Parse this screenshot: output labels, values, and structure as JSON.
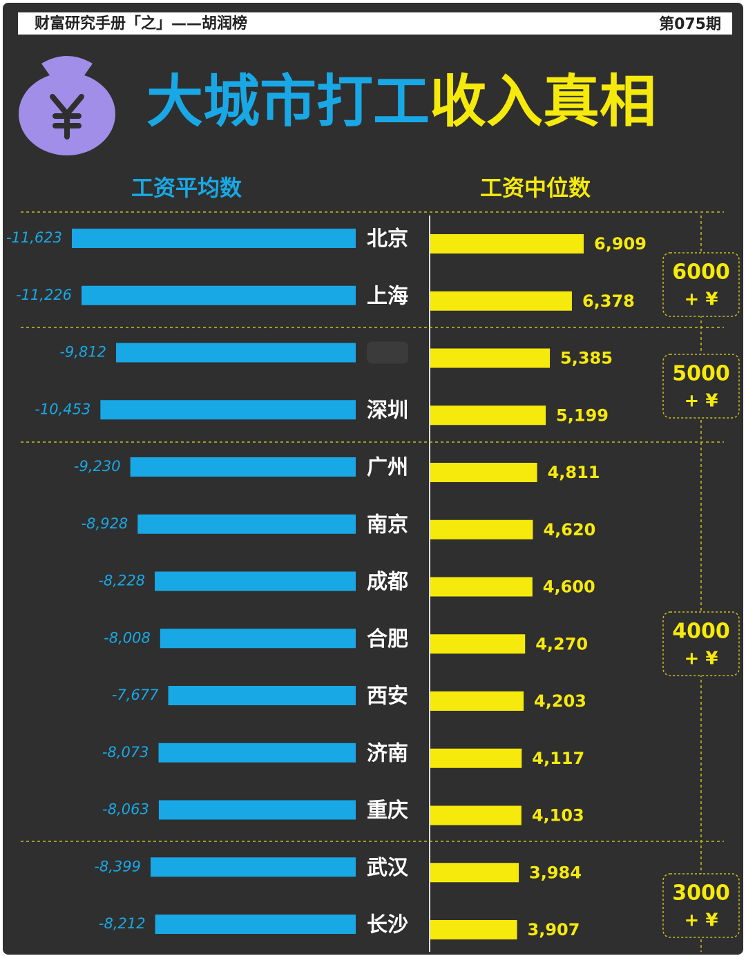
{
  "header": {
    "title": "财富研究手册「之」——胡润榜",
    "issue": "第075期"
  },
  "chart_data": {
    "type": "butterfly-bar",
    "title_parts": [
      {
        "text": "大城市打工",
        "color": "#19a8e6"
      },
      {
        "text": "收入真相",
        "color": "#f6ea0c"
      }
    ],
    "categories": [
      "北京",
      "上海",
      null,
      "深圳",
      "广州",
      "南京",
      "成都",
      "合肥",
      "西安",
      "济南",
      "重庆",
      "武汉",
      "长沙"
    ],
    "series": [
      {
        "name": "工资平均数",
        "color": "#19a8e6",
        "values": [
          -11623,
          -11226,
          -9812,
          -10453,
          -9230,
          -8928,
          -8228,
          -8008,
          -7677,
          -8073,
          -8063,
          -8399,
          -8212
        ],
        "value_labels": [
          "-11,623",
          "-11,226",
          "-9,812",
          "-10,453",
          "-9,230",
          "-8,928",
          "-8,228",
          "-8,008",
          "-7,677",
          "-8,073",
          "-8,063",
          "-8,399",
          "-8,212"
        ]
      },
      {
        "name": "工资中位数",
        "color": "#f6ea0c",
        "values": [
          6909,
          6378,
          5385,
          5199,
          4811,
          4620,
          4600,
          4270,
          4203,
          4117,
          4103,
          3984,
          3907
        ],
        "value_labels": [
          "6,909",
          "6,378",
          "5,385",
          "5,199",
          "4,811",
          "4,620",
          "4,600",
          "4,270",
          "4,203",
          "4,117",
          "4,103",
          "3,984",
          "3,907"
        ]
      }
    ],
    "tiers": [
      {
        "label": "6000",
        "suffix": "+ ¥"
      },
      {
        "label": "5000",
        "suffix": "+ ¥"
      },
      {
        "label": "4000",
        "suffix": "+ ¥"
      },
      {
        "label": "3000",
        "suffix": "+ ¥"
      }
    ]
  }
}
